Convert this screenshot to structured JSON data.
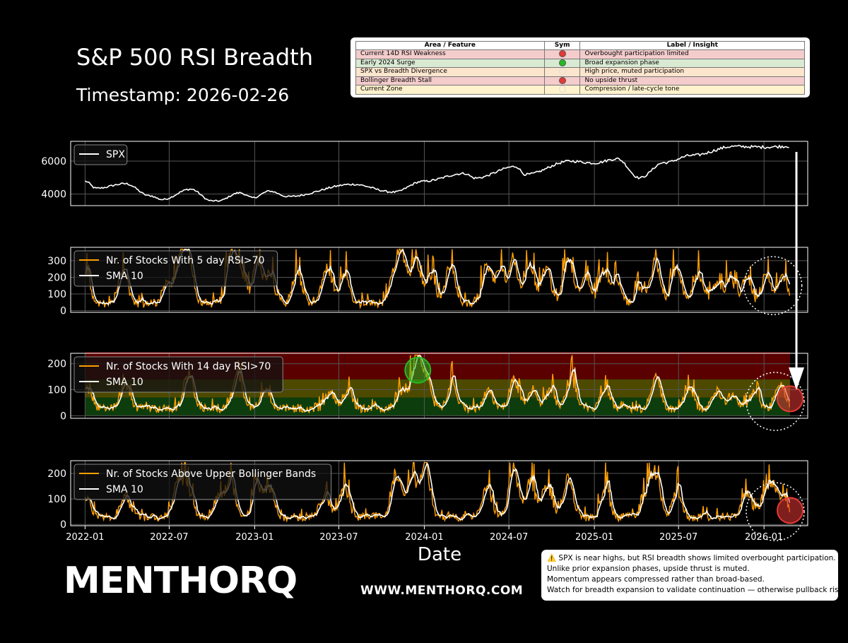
{
  "header": {
    "title": "S&P 500 RSI Breadth",
    "timestamp": "Timestamp: 2026-02-26"
  },
  "insights": {
    "columns": [
      "Area / Feature",
      "Sym",
      "Label / Insight"
    ],
    "rows": [
      {
        "feature": "Current 14D RSI Weakness",
        "symbol_color": "#e53935",
        "label": "Overbought participation limited",
        "row_color": "#f4cccc"
      },
      {
        "feature": "Early 2024 Surge",
        "symbol_color": "#22bb22",
        "label": "Broad expansion phase",
        "row_color": "#d9ead3"
      },
      {
        "feature": "SPX vs Breadth Divergence",
        "symbol_color": "#fce5cd",
        "label": "High price, muted participation",
        "row_color": "#fce5cd"
      },
      {
        "feature": "Bollinger Breadth Stall",
        "symbol_color": "#e53935",
        "label": "No upside thrust",
        "row_color": "#f4cccc"
      },
      {
        "feature": "Current Zone",
        "symbol_color": "#fff2cc",
        "label": "Compression / late-cycle tone",
        "row_color": "#fff2cc"
      }
    ]
  },
  "chart_data": [
    {
      "type": "line",
      "series": [
        {
          "name": "SPX",
          "color": "#ffffff"
        }
      ],
      "x_range": [
        "2021-12-01",
        "2026-04-05"
      ],
      "ylim": [
        3300,
        7200
      ],
      "y_ticks": [
        4000,
        6000
      ],
      "anchors": [
        [
          "2022-01-01",
          4780
        ],
        [
          "2022-01-25",
          4350
        ],
        [
          "2022-03-29",
          4630
        ],
        [
          "2022-05-20",
          3900
        ],
        [
          "2022-06-16",
          3670
        ],
        [
          "2022-08-16",
          4300
        ],
        [
          "2022-09-30",
          3590
        ],
        [
          "2022-10-13",
          3580
        ],
        [
          "2022-11-30",
          4080
        ],
        [
          "2022-12-28",
          3780
        ],
        [
          "2023-02-02",
          4180
        ],
        [
          "2023-03-13",
          3850
        ],
        [
          "2023-07-31",
          4590
        ],
        [
          "2023-10-27",
          4120
        ],
        [
          "2023-12-29",
          4770
        ],
        [
          "2024-03-28",
          5250
        ],
        [
          "2024-04-19",
          4970
        ],
        [
          "2024-07-16",
          5670
        ],
        [
          "2024-08-05",
          5190
        ],
        [
          "2024-11-11",
          6000
        ],
        [
          "2024-12-31",
          5880
        ],
        [
          "2025-02-19",
          6140
        ],
        [
          "2025-04-08",
          4980
        ],
        [
          "2025-05-30",
          5900
        ],
        [
          "2025-07-31",
          6350
        ],
        [
          "2025-10-28",
          6890
        ],
        [
          "2025-12-31",
          6850
        ],
        [
          "2026-02-26",
          6900
        ]
      ],
      "legend": "upper left",
      "grid": true
    },
    {
      "type": "line",
      "series": [
        {
          "name": "Nr. of Stocks With 5 day RSI>70",
          "color": "#ff9f00"
        },
        {
          "name": "SMA 10",
          "color": "#ffffff"
        }
      ],
      "x_range": [
        "2021-12-01",
        "2026-04-05"
      ],
      "ylim": [
        -10,
        380
      ],
      "y_ticks": [
        0,
        100,
        200,
        300
      ],
      "peaks": [
        [
          "2022-01-03",
          190
        ],
        [
          "2022-03-24",
          220
        ],
        [
          "2022-06-27",
          150
        ],
        [
          "2022-07-25",
          290
        ],
        [
          "2022-08-11",
          300
        ],
        [
          "2022-11-11",
          330
        ],
        [
          "2022-12-01",
          230
        ],
        [
          "2023-01-06",
          280
        ],
        [
          "2023-02-02",
          200
        ],
        [
          "2023-04-03",
          210
        ],
        [
          "2023-06-05",
          260
        ],
        [
          "2023-07-14",
          220
        ],
        [
          "2023-10-27",
          160
        ],
        [
          "2023-11-14",
          350
        ],
        [
          "2023-12-14",
          300
        ],
        [
          "2024-01-15",
          190
        ],
        [
          "2024-02-26",
          240
        ],
        [
          "2024-05-15",
          270
        ],
        [
          "2024-06-12",
          230
        ],
        [
          "2024-07-11",
          290
        ],
        [
          "2024-08-15",
          260
        ],
        [
          "2024-09-19",
          260
        ],
        [
          "2024-11-06",
          330
        ],
        [
          "2024-12-12",
          180
        ],
        [
          "2025-01-21",
          220
        ],
        [
          "2025-02-18",
          160
        ],
        [
          "2025-04-09",
          120
        ],
        [
          "2025-05-12",
          300
        ],
        [
          "2025-06-26",
          250
        ],
        [
          "2025-08-12",
          200
        ],
        [
          "2025-09-20",
          150
        ],
        [
          "2025-10-21",
          180
        ],
        [
          "2025-11-24",
          170
        ],
        [
          "2026-01-06",
          200
        ],
        [
          "2026-02-10",
          180
        ]
      ],
      "legend": "upper left",
      "grid": true,
      "annotations": [
        {
          "type": "dotted-circle",
          "date": "2026-01-20",
          "value": 150
        }
      ]
    },
    {
      "type": "line",
      "series": [
        {
          "name": "Nr. of Stocks With 14 day RSI>70",
          "color": "#ff9f00"
        },
        {
          "name": "SMA 10",
          "color": "#ffffff"
        }
      ],
      "x_range": [
        "2021-12-01",
        "2026-04-05"
      ],
      "ylim": [
        -10,
        240
      ],
      "y_ticks": [
        0,
        100,
        200
      ],
      "zones": [
        {
          "from": 0,
          "to": 70,
          "color": "#0d3d0d"
        },
        {
          "from": 70,
          "to": 140,
          "color": "#4d4a00"
        },
        {
          "from": 140,
          "to": 245,
          "color": "#5a0000"
        }
      ],
      "peaks": [
        [
          "2022-01-05",
          90
        ],
        [
          "2022-03-30",
          110
        ],
        [
          "2022-08-12",
          155
        ],
        [
          "2022-11-25",
          150
        ],
        [
          "2023-01-24",
          85
        ],
        [
          "2023-06-12",
          85
        ],
        [
          "2023-07-20",
          75
        ],
        [
          "2023-11-14",
          80
        ],
        [
          "2023-12-15",
          225
        ],
        [
          "2024-01-05",
          140
        ],
        [
          "2024-03-01",
          110
        ],
        [
          "2024-05-17",
          80
        ],
        [
          "2024-07-12",
          125
        ],
        [
          "2024-08-21",
          80
        ],
        [
          "2024-09-27",
          80
        ],
        [
          "2024-11-11",
          125
        ],
        [
          "2025-01-24",
          70
        ],
        [
          "2025-05-13",
          140
        ],
        [
          "2025-07-24",
          80
        ],
        [
          "2025-09-23",
          80
        ],
        [
          "2025-10-28",
          60
        ],
        [
          "2025-12-12",
          75
        ],
        [
          "2026-02-05",
          105
        ]
      ],
      "legend": "upper left",
      "grid": true,
      "annotations": [
        {
          "type": "marker",
          "color": "#22bb22",
          "date": "2023-12-18",
          "value": 175
        },
        {
          "type": "marker",
          "color": "#e53935",
          "date": "2026-02-26",
          "value": 65
        },
        {
          "type": "dotted-circle",
          "date": "2026-01-25",
          "value": 55
        }
      ]
    },
    {
      "type": "line",
      "series": [
        {
          "name": "Nr. of Stocks Above Upper Bollinger Bands",
          "color": "#ff9f00"
        },
        {
          "name": "SMA 10",
          "color": "#ffffff"
        }
      ],
      "x_range": [
        "2021-12-01",
        "2026-04-05"
      ],
      "ylim": [
        -5,
        250
      ],
      "y_ticks": [
        0,
        100,
        200
      ],
      "peaks": [
        [
          "2022-01-03",
          90
        ],
        [
          "2022-03-28",
          100
        ],
        [
          "2022-07-20",
          160
        ],
        [
          "2022-08-10",
          130
        ],
        [
          "2022-10-15",
          95
        ],
        [
          "2022-11-10",
          170
        ],
        [
          "2023-01-06",
          160
        ],
        [
          "2023-02-01",
          120
        ],
        [
          "2023-06-01",
          100
        ],
        [
          "2023-07-12",
          130
        ],
        [
          "2023-11-02",
          190
        ],
        [
          "2023-12-05",
          190
        ],
        [
          "2024-01-02",
          240
        ],
        [
          "2024-05-15",
          140
        ],
        [
          "2024-07-11",
          220
        ],
        [
          "2024-08-16",
          160
        ],
        [
          "2024-09-19",
          140
        ],
        [
          "2024-11-06",
          180
        ],
        [
          "2025-01-24",
          115
        ],
        [
          "2025-04-24",
          95
        ],
        [
          "2025-05-12",
          180
        ],
        [
          "2025-06-27",
          110
        ],
        [
          "2025-11-24",
          110
        ],
        [
          "2025-12-31",
          80
        ],
        [
          "2026-01-20",
          130
        ],
        [
          "2026-02-12",
          90
        ]
      ],
      "legend": "upper left",
      "grid": true,
      "xlabel": "Date",
      "x_ticks": [
        "2022-01",
        "2022-07",
        "2023-01",
        "2023-07",
        "2024-01",
        "2024-07",
        "2025-01",
        "2025-07",
        "2026-01"
      ],
      "annotations": [
        {
          "type": "marker",
          "color": "#e53935",
          "date": "2026-02-26",
          "value": 55
        },
        {
          "type": "dotted-circle",
          "date": "2026-01-25",
          "value": 50
        }
      ]
    }
  ],
  "notes": [
    "⚠️ SPX is near highs, but RSI breadth shows limited overbought participation.",
    "Unlike prior expansion phases, upside thrust is muted.",
    "Momentum appears compressed rather than broad-based.",
    "Watch for breadth expansion to validate continuation — otherwise pullback risk rises."
  ],
  "brand": {
    "logo_text": "MENTHORQ",
    "website": "WWW.MENTHORQ.COM"
  }
}
